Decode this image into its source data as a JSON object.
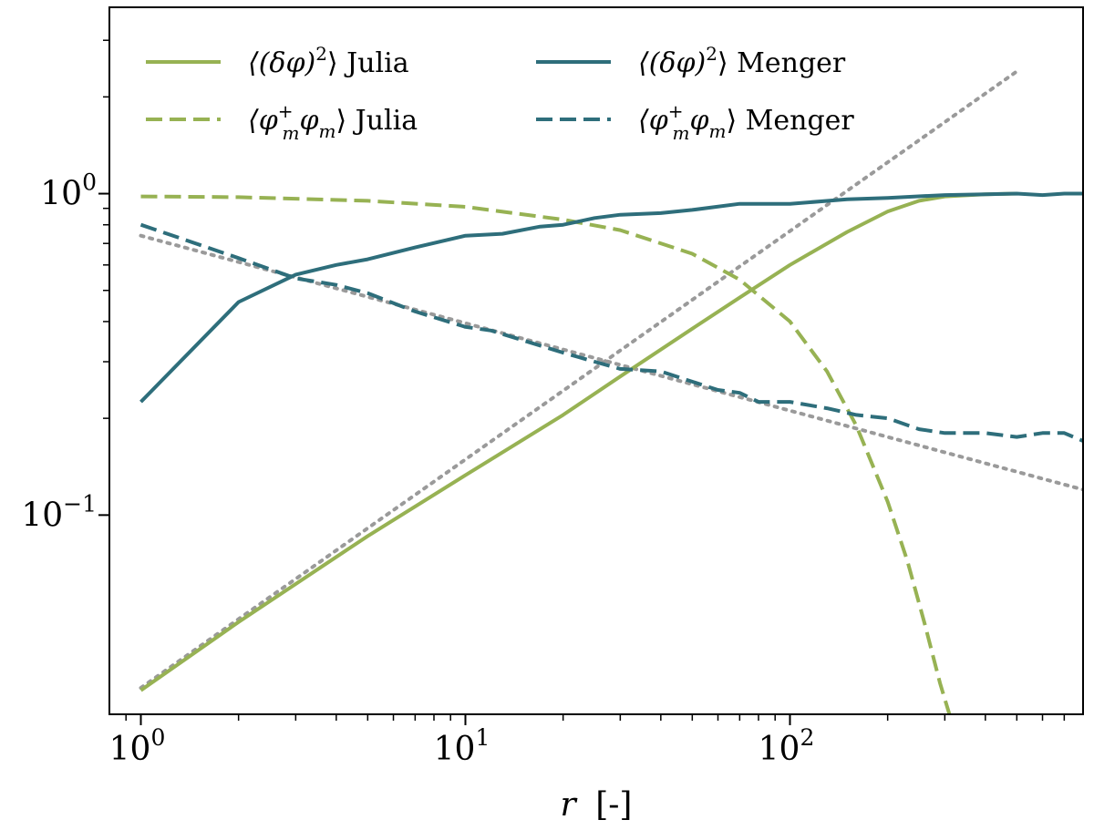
{
  "chart_data": {
    "type": "line",
    "xlabel_var": "r",
    "xlabel_unit": "[-]",
    "ylabel": "",
    "xscale": "log",
    "yscale": "log",
    "xlim": [
      0.8,
      800
    ],
    "ylim": [
      0.024,
      3.8
    ],
    "x_ticks": [
      {
        "value": 1,
        "base": "10",
        "exp": "0"
      },
      {
        "value": 10,
        "base": "10",
        "exp": "1"
      },
      {
        "value": 100,
        "base": "10",
        "exp": "2"
      }
    ],
    "y_ticks": [
      {
        "value": 0.1,
        "base": "10",
        "exp": "−1"
      },
      {
        "value": 1,
        "base": "10",
        "exp": "0"
      }
    ],
    "grid": false,
    "legend_placement": "top",
    "colors": {
      "julia": "#97b253",
      "menger": "#2e6e7b",
      "fit": "#9a9a9a"
    },
    "series": [
      {
        "name": "⟨(δφ)²⟩ Julia",
        "legend_parts": {
          "main": "⟨(δφ)",
          "sup": "2",
          "rest": "⟩ Julia"
        },
        "color": "#97b253",
        "dash": "solid",
        "x": [
          1,
          2,
          5,
          10,
          20,
          30,
          50,
          70,
          100,
          150,
          200,
          250,
          300,
          400,
          500
        ],
        "y": [
          0.0285,
          0.0465,
          0.086,
          0.133,
          0.205,
          0.27,
          0.38,
          0.475,
          0.6,
          0.76,
          0.88,
          0.95,
          0.98,
          0.995,
          1.0
        ]
      },
      {
        "name": "⟨φm⁺φm⟩ Julia",
        "legend_parts": {
          "main": "⟨φ",
          "sub": "m",
          "sup": "+",
          "main2": "φ",
          "sub2": "m",
          "rest": "⟩ Julia"
        },
        "color": "#97b253",
        "dash": "dashed",
        "x": [
          1,
          2,
          5,
          10,
          20,
          30,
          50,
          70,
          100,
          130,
          160,
          200,
          230,
          260,
          290,
          310
        ],
        "y": [
          0.98,
          0.975,
          0.95,
          0.91,
          0.83,
          0.77,
          0.65,
          0.54,
          0.4,
          0.28,
          0.19,
          0.11,
          0.072,
          0.046,
          0.03,
          0.024
        ]
      },
      {
        "name": "⟨(δφ)²⟩ Menger",
        "legend_parts": {
          "main": "⟨(δφ)",
          "sup": "2",
          "rest": "⟩ Menger"
        },
        "color": "#2e6e7b",
        "dash": "solid",
        "x": [
          1,
          2,
          3,
          4,
          5,
          7,
          10,
          13,
          17,
          20,
          25,
          30,
          40,
          50,
          70,
          100,
          150,
          200,
          300,
          400,
          500,
          600,
          700,
          800
        ],
        "y": [
          0.225,
          0.46,
          0.56,
          0.6,
          0.625,
          0.68,
          0.74,
          0.75,
          0.79,
          0.8,
          0.84,
          0.86,
          0.87,
          0.89,
          0.93,
          0.93,
          0.96,
          0.97,
          0.99,
          0.995,
          1.0,
          0.99,
          1.0,
          1.0
        ]
      },
      {
        "name": "⟨φm⁺φm⟩ Menger",
        "legend_parts": {
          "main": "⟨φ",
          "sub": "m",
          "sup": "+",
          "main2": "φ",
          "sub2": "m",
          "rest": "⟩ Menger"
        },
        "color": "#2e6e7b",
        "dash": "dashed",
        "x": [
          1,
          2,
          3,
          4,
          5,
          7,
          10,
          12,
          15,
          20,
          25,
          30,
          40,
          50,
          60,
          70,
          80,
          100,
          130,
          160,
          200,
          250,
          300,
          400,
          500,
          600,
          700,
          800
        ],
        "y": [
          0.8,
          0.63,
          0.545,
          0.52,
          0.49,
          0.43,
          0.385,
          0.375,
          0.35,
          0.32,
          0.3,
          0.285,
          0.28,
          0.26,
          0.245,
          0.24,
          0.225,
          0.225,
          0.215,
          0.205,
          0.2,
          0.185,
          0.18,
          0.18,
          0.175,
          0.18,
          0.18,
          0.17
        ]
      }
    ],
    "reference_lines": [
      {
        "style": "dotted",
        "color": "#9a9a9a",
        "x": [
          1,
          500
        ],
        "y": [
          0.029,
          2.4
        ]
      },
      {
        "style": "dotted",
        "color": "#9a9a9a",
        "x": [
          1,
          800
        ],
        "y": [
          0.74,
          0.12
        ]
      }
    ]
  }
}
